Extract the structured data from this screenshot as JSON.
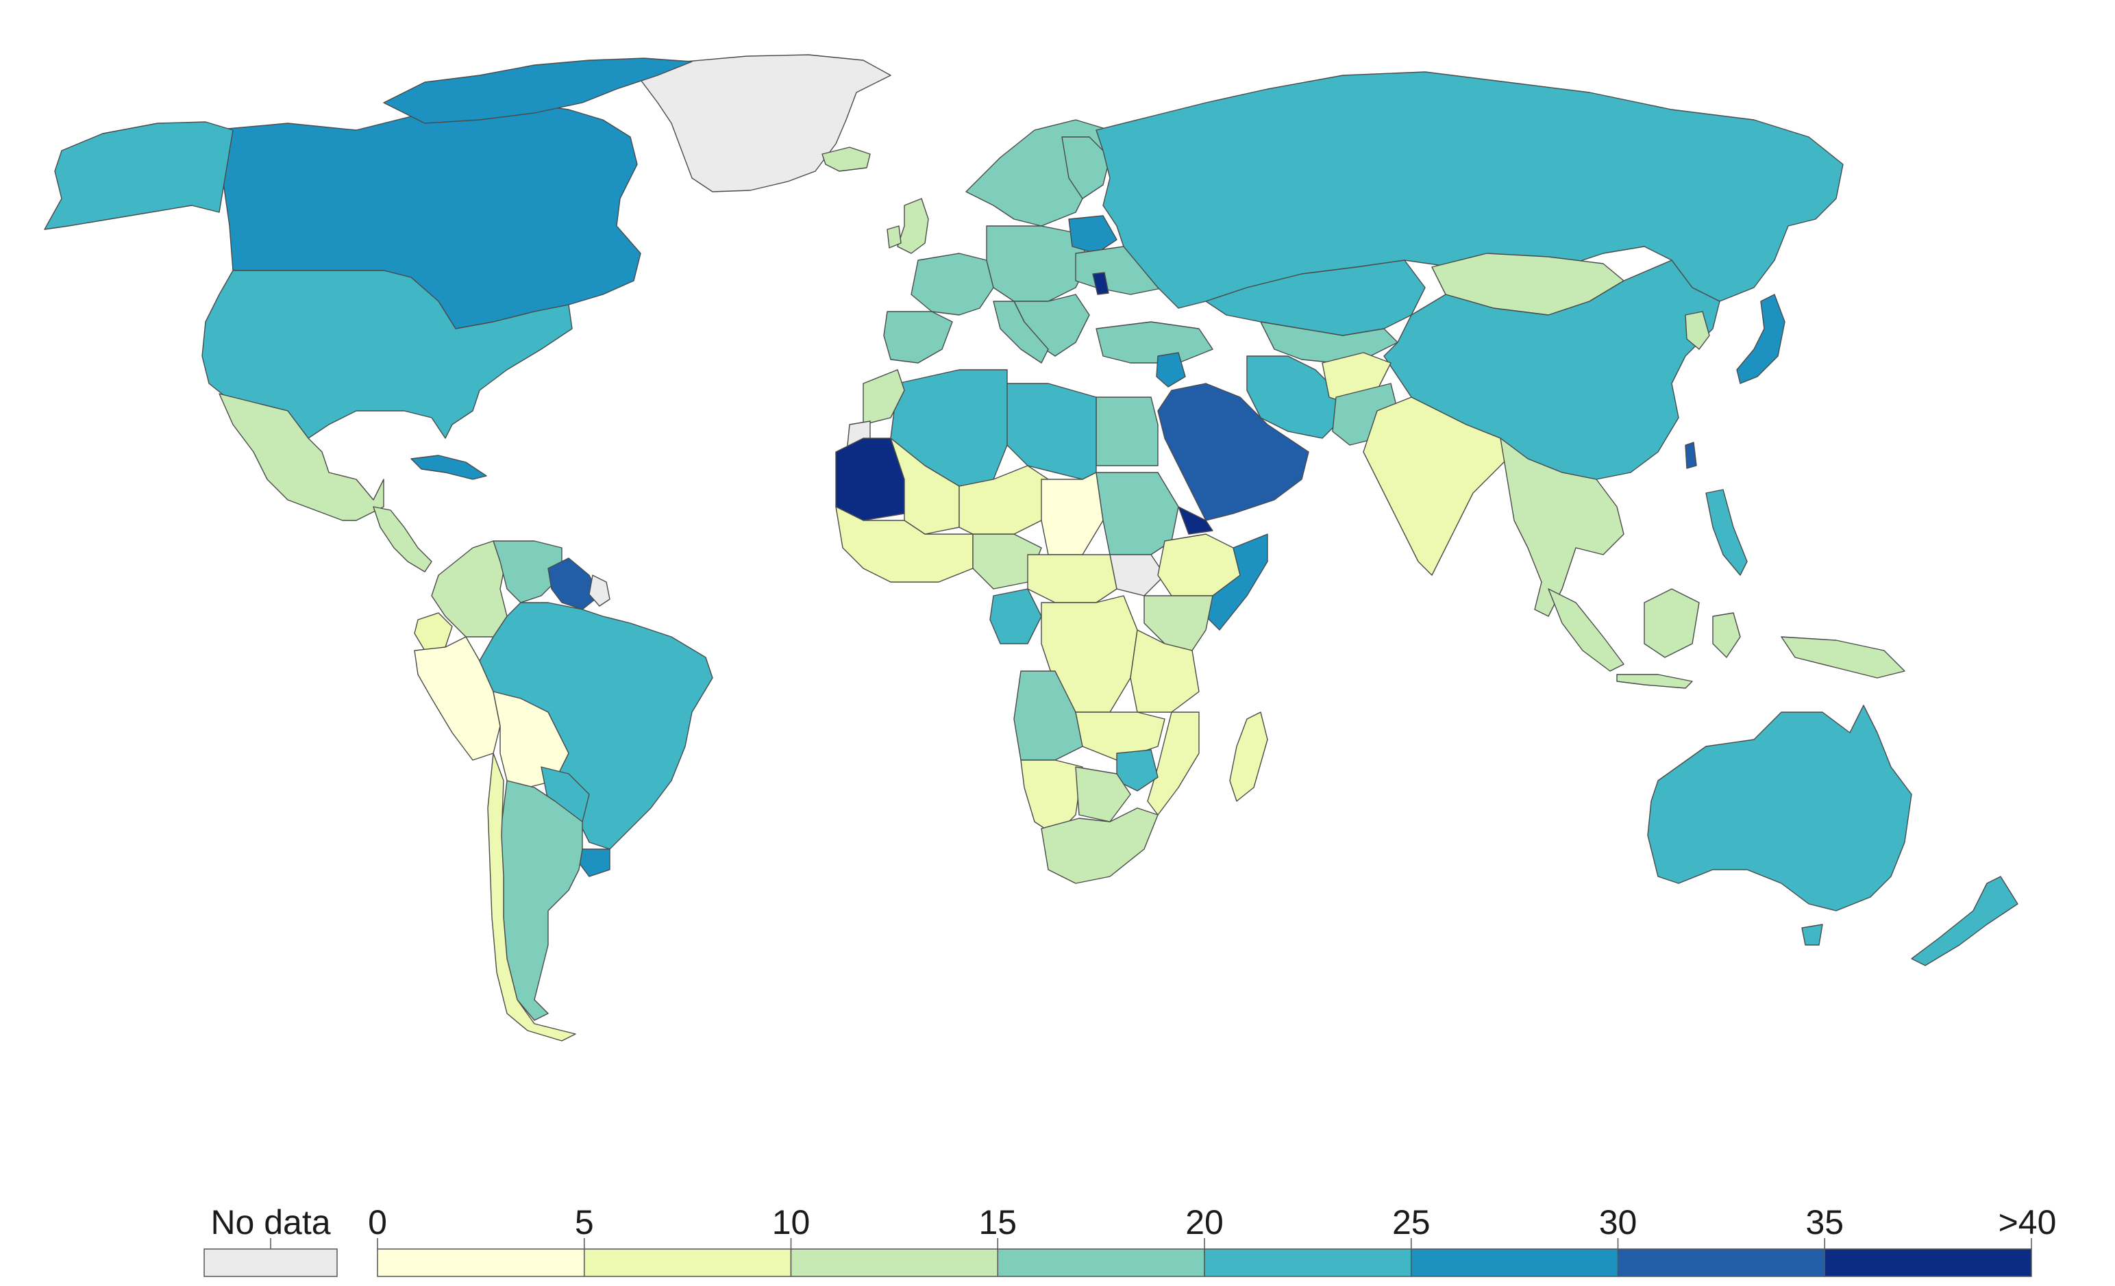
{
  "legend": {
    "no_data_label": "No data",
    "no_data_color": "#ebebeb",
    "tick_labels": [
      "0",
      "5",
      "10",
      "15",
      "20",
      "25",
      "30",
      "35",
      ">40"
    ],
    "bin_colors": [
      "#ffffd9",
      "#edf8b1",
      "#c7e9b4",
      "#7fcdbb",
      "#41b6c4",
      "#1d91c0",
      "#225ea8",
      "#0c2c84"
    ]
  },
  "regions": [
    {
      "name": "Greenland",
      "bin": "no-data"
    },
    {
      "name": "Canada",
      "bin": 5
    },
    {
      "name": "United States",
      "bin": 4
    },
    {
      "name": "Alaska",
      "bin": 4
    },
    {
      "name": "Mexico",
      "bin": 2
    },
    {
      "name": "Cuba",
      "bin": 5
    },
    {
      "name": "Brazil",
      "bin": 4
    },
    {
      "name": "Argentina",
      "bin": 3
    },
    {
      "name": "Peru",
      "bin": 0
    },
    {
      "name": "Bolivia",
      "bin": 0
    },
    {
      "name": "Colombia",
      "bin": 2
    },
    {
      "name": "Venezuela",
      "bin": 3
    },
    {
      "name": "Guyana / Suriname",
      "bin": 6
    },
    {
      "name": "Chile",
      "bin": 1
    },
    {
      "name": "Russia",
      "bin": 4
    },
    {
      "name": "China",
      "bin": 4
    },
    {
      "name": "Mongolia",
      "bin": 2
    },
    {
      "name": "India",
      "bin": 1
    },
    {
      "name": "Saudi Arabia",
      "bin": 6
    },
    {
      "name": "Mauritania",
      "bin": 7
    },
    {
      "name": "Western Sahara",
      "bin": "no-data"
    },
    {
      "name": "Algeria",
      "bin": 4
    },
    {
      "name": "Libya",
      "bin": 4
    },
    {
      "name": "Egypt",
      "bin": 3
    },
    {
      "name": "Sudan",
      "bin": 3
    },
    {
      "name": "South Sudan",
      "bin": "no-data"
    },
    {
      "name": "Niger",
      "bin": 1
    },
    {
      "name": "Chad",
      "bin": 0
    },
    {
      "name": "Nigeria",
      "bin": 2
    },
    {
      "name": "DR Congo",
      "bin": 1
    },
    {
      "name": "Angola",
      "bin": 3
    },
    {
      "name": "Namibia",
      "bin": 1
    },
    {
      "name": "South Africa",
      "bin": 2
    },
    {
      "name": "Somalia",
      "bin": 5
    },
    {
      "name": "Ethiopia",
      "bin": 1
    },
    {
      "name": "Madagascar",
      "bin": 1
    },
    {
      "name": "Australia",
      "bin": 4
    },
    {
      "name": "New Zealand",
      "bin": 4
    },
    {
      "name": "Indonesia",
      "bin": 2
    },
    {
      "name": "Iran",
      "bin": 4
    },
    {
      "name": "Kazakhstan",
      "bin": 4
    },
    {
      "name": "Afghanistan",
      "bin": 1
    },
    {
      "name": "Pakistan",
      "bin": 3
    },
    {
      "name": "Japan",
      "bin": 5
    },
    {
      "name": "Scandinavia",
      "bin": 3
    },
    {
      "name": "Europe",
      "bin": 3
    },
    {
      "name": "Spain",
      "bin": 3
    },
    {
      "name": "Papua New Guinea",
      "bin": 2
    },
    {
      "name": "Philippines",
      "bin": 4
    },
    {
      "name": "Southeast Asia",
      "bin": 2
    }
  ]
}
